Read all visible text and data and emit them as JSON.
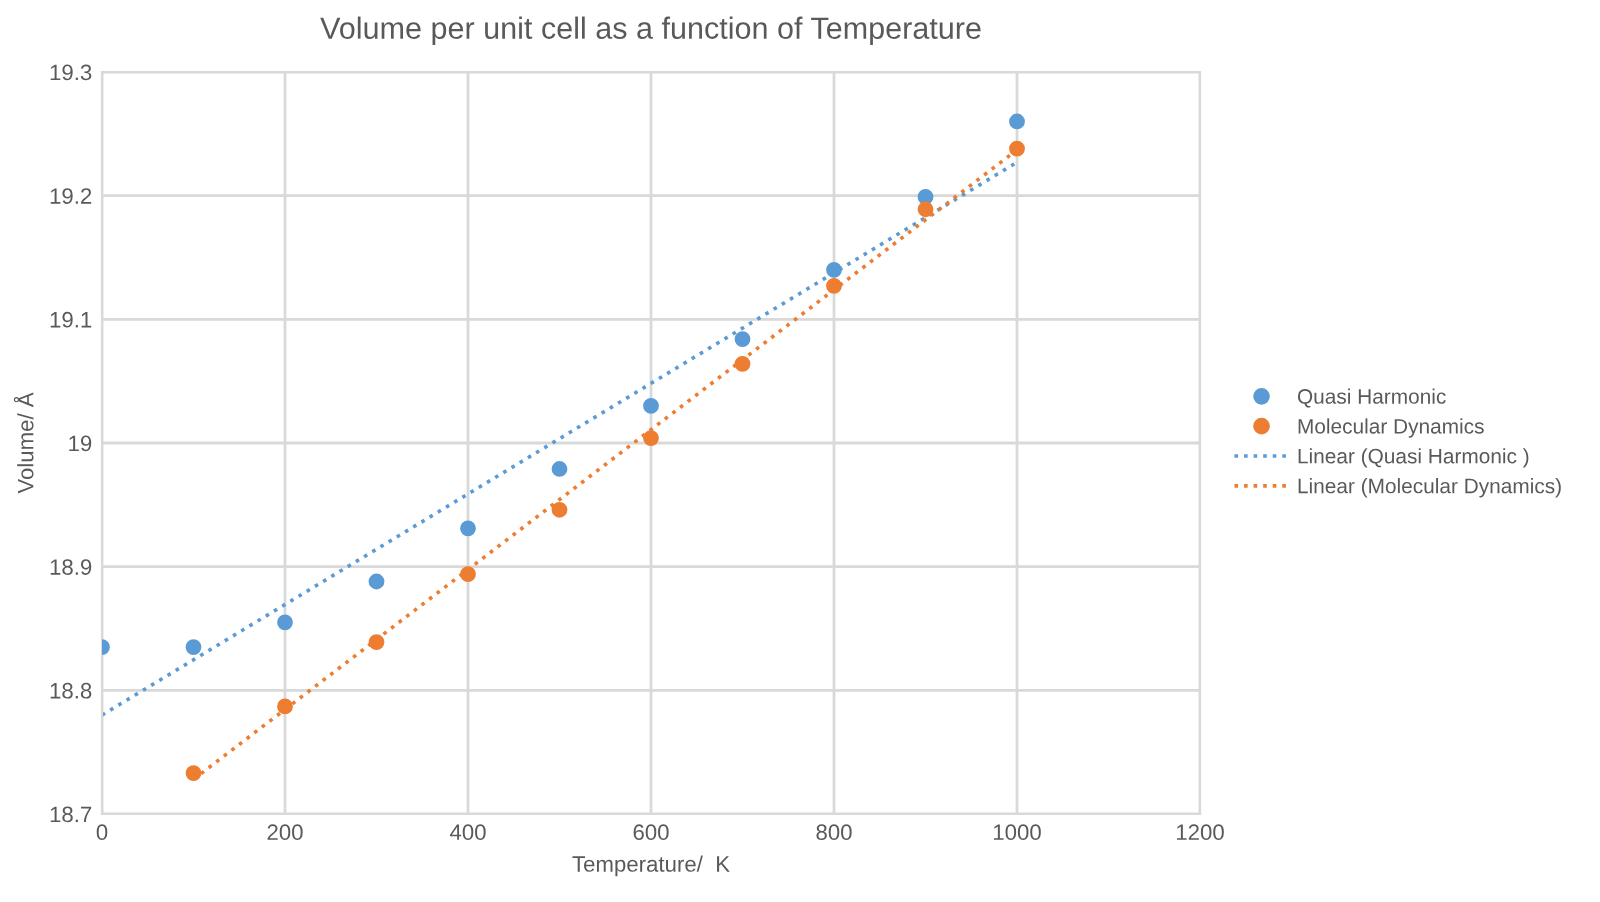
{
  "chart_data": {
    "type": "scatter",
    "title": "Volume per unit cell as a function of Temperature",
    "xlabel": "Temperature/  K",
    "ylabel": "Volume/ Å",
    "x": [
      0,
      100,
      200,
      300,
      400,
      500,
      600,
      700,
      800,
      900,
      1000
    ],
    "series": [
      {
        "name": "Quasi Harmonic",
        "color": "#5b9bd5",
        "marker": "circle",
        "values": [
          18.835,
          18.835,
          18.855,
          18.888,
          18.931,
          18.979,
          19.03,
          19.084,
          19.14,
          19.199,
          19.26
        ]
      },
      {
        "name": "Molecular Dynamics",
        "color": "#ed7d31",
        "marker": "circle",
        "x": [
          100,
          200,
          300,
          400,
          500,
          600,
          700,
          800,
          900,
          1000
        ],
        "values": [
          18.733,
          18.787,
          18.839,
          18.894,
          18.946,
          19.004,
          19.064,
          19.127,
          19.189,
          19.238
        ]
      },
      {
        "name": "Linear (Quasi Harmonic )",
        "color": "#5b9bd5",
        "type": "line",
        "marker": "none",
        "line_style": "dotted",
        "x": [
          0,
          1000
        ],
        "values": [
          18.78,
          19.227
        ]
      },
      {
        "name": "Linear (Molecular Dynamics)",
        "color": "#ed7d31",
        "type": "line",
        "marker": "none",
        "line_style": "dotted",
        "x": [
          100,
          1000
        ],
        "values": [
          18.728,
          19.237
        ]
      }
    ],
    "xlim": [
      0,
      1200
    ],
    "xticks": [
      0,
      200,
      400,
      600,
      800,
      1000,
      1200
    ],
    "ylim": [
      18.7,
      19.3
    ],
    "yticks": [
      18.7,
      18.8,
      18.9,
      19,
      19.1,
      19.2,
      19.3
    ],
    "grid": true,
    "legend": "right"
  }
}
